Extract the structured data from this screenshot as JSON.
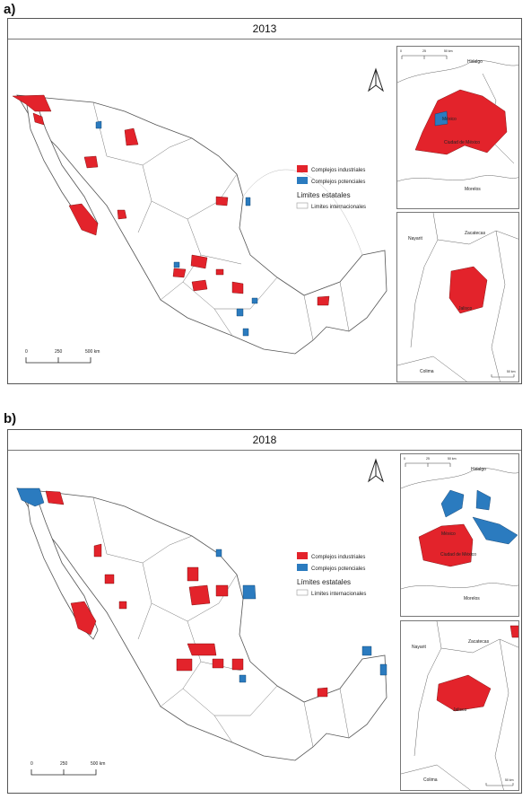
{
  "panels": [
    {
      "letter": "a)",
      "year": "2013",
      "legend": {
        "industrial": "Complejos industriales",
        "potential": "Complejos potenciales",
        "state_limits": "Limites estatales",
        "intl_limits": "Limites internacionales"
      },
      "scale": {
        "zero": "0",
        "mid": "250",
        "end": "500 km"
      },
      "inset_top": {
        "scale_zero": "0",
        "scale_mid": "25",
        "scale_end": "50 km",
        "hidalgo": "Hidalgo",
        "mexico": "México",
        "cdmx": "Ciudad de México",
        "morelos": "Morelos"
      },
      "inset_bottom": {
        "nayarit": "Nayarit",
        "zacatecas": "Zacatecas",
        "jalisco": "Jalisco",
        "colima": "Colima",
        "scale_end": "50 km"
      }
    },
    {
      "letter": "b)",
      "year": "2018",
      "legend": {
        "industrial": "Complejos industriales",
        "potential": "Complejos potenciales",
        "state_limits": "Límites estatales",
        "intl_limits": "Límites internacionales"
      },
      "scale": {
        "zero": "0",
        "mid": "250",
        "end": "500 km"
      },
      "inset_top": {
        "scale_zero": "0",
        "scale_mid": "25",
        "scale_end": "50 km",
        "hidalgo": "Hidalgo",
        "mexico": "México",
        "cdmx": "Ciudad de México",
        "morelos": "Morelos"
      },
      "inset_bottom": {
        "nayarit": "Nayarit",
        "zacatecas": "Zacatecas",
        "jalisco": "Jalisco",
        "colima": "Colima",
        "scale_end": "50 km"
      }
    }
  ],
  "colors": {
    "industrial": "#e3232b",
    "potential": "#2b7bbf",
    "boundary": "#555555"
  }
}
